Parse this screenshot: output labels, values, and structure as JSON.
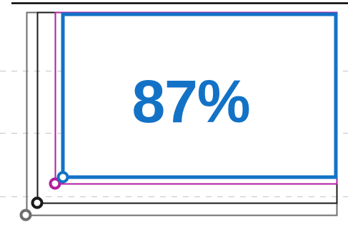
{
  "value_label": "87%",
  "value": 87,
  "unit": "%",
  "colors": {
    "accent_frame": "#1372c6",
    "magenta_frame": "#b21ea0",
    "black_frame": "#1a1a1a",
    "gray_frame": "#6e6e6e",
    "top_rule": "#000000",
    "guide_lines": "#bdbdbd",
    "background": "#ffffff"
  }
}
